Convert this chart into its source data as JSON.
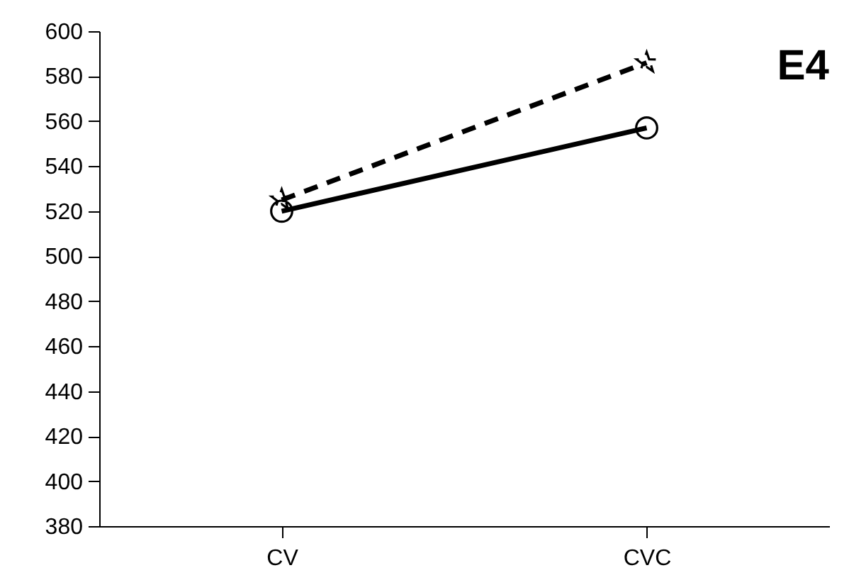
{
  "chart_data": {
    "type": "line",
    "title": "E4",
    "categories": [
      "CV",
      "CVC"
    ],
    "series": [
      {
        "color": "#000000",
        "values": [
          520,
          557
        ],
        "marker": "circle",
        "line_style": "solid"
      },
      {
        "color": "#000000",
        "values": [
          525,
          586
        ],
        "marker": "star",
        "line_style": "dashed"
      }
    ],
    "ylim": [
      380,
      600
    ],
    "yticks": [
      380,
      400,
      420,
      440,
      460,
      480,
      500,
      520,
      540,
      560,
      580,
      600
    ],
    "grid": false,
    "legend": false
  }
}
